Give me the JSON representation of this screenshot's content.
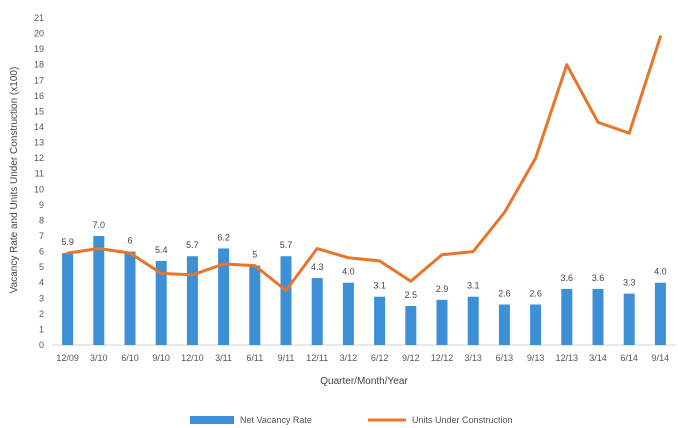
{
  "chart_data": {
    "type": "bar",
    "title": "",
    "xlabel": "Quarter/Month/Year",
    "ylabel": "Vacancy Rate and Units Under Construction (x100)",
    "ylim": [
      0,
      21
    ],
    "yticks": [
      0,
      1,
      2,
      3,
      4,
      5,
      6,
      7,
      8,
      9,
      10,
      11,
      12,
      13,
      14,
      15,
      16,
      17,
      18,
      19,
      20,
      21
    ],
    "grid": false,
    "legend_position": "bottom",
    "categories": [
      "12/09",
      "3/10",
      "6/10",
      "9/10",
      "12/10",
      "3/11",
      "6/11",
      "9/11",
      "12/11",
      "3/12",
      "6/12",
      "9/12",
      "12/12",
      "3/13",
      "6/13",
      "9/13",
      "12/13",
      "3/14",
      "6/14",
      "9/14"
    ],
    "series": [
      {
        "name": "Net Vacancy Rate",
        "type": "bar",
        "color": "#3d8fd6",
        "values": [
          5.9,
          7.0,
          6.0,
          5.4,
          5.7,
          6.2,
          5.1,
          5.7,
          4.3,
          4.0,
          3.1,
          2.5,
          2.9,
          3.1,
          2.6,
          2.6,
          3.6,
          3.6,
          3.3,
          4.0
        ],
        "labels": [
          "5.9",
          "7.0",
          "6",
          "5.4",
          "5.7",
          "6.2",
          "5",
          "5.7",
          "4.3",
          "4.0",
          "3.1",
          "2.5",
          "2.9",
          "3.1",
          "2.6",
          "2.6",
          "3.6",
          "3.6",
          "3.3",
          "4.0"
        ]
      },
      {
        "name": "Units Under Construction",
        "type": "line",
        "color": "#e5762b",
        "values": [
          5.9,
          6.2,
          5.9,
          4.6,
          4.5,
          5.2,
          5.1,
          3.5,
          6.2,
          5.6,
          5.4,
          4.1,
          5.8,
          6.0,
          8.5,
          12.0,
          18.0,
          14.3,
          13.6,
          19.8
        ]
      }
    ]
  }
}
